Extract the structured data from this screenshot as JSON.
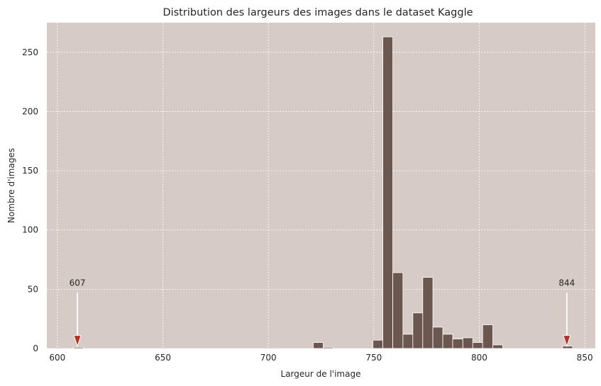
{
  "chart_data": {
    "type": "bar",
    "title": "Distribution des largeurs des images dans le dataset Kaggle",
    "xlabel": "Largeur de l'image",
    "ylabel": "Nombre d'images",
    "xlim": [
      595,
      855
    ],
    "ylim": [
      0,
      275
    ],
    "xticks": [
      600,
      650,
      700,
      750,
      800,
      850
    ],
    "yticks": [
      0,
      50,
      100,
      150,
      200,
      250
    ],
    "grid": true,
    "colors": {
      "plot_background": "#d7cbc8",
      "bar_fill": "#6b5750",
      "bar_edge": "#ffffff",
      "grid": "#ffffff",
      "arrow_head": "#b5301f"
    },
    "bins": [
      {
        "x0": 607.7,
        "x1": 612.4,
        "count": 1
      },
      {
        "x0": 721.3,
        "x1": 726.0,
        "count": 5
      },
      {
        "x0": 726.0,
        "x1": 730.7,
        "count": 1
      },
      {
        "x0": 749.6,
        "x1": 754.3,
        "count": 7
      },
      {
        "x0": 754.3,
        "x1": 759.0,
        "count": 263
      },
      {
        "x0": 759.0,
        "x1": 763.8,
        "count": 64
      },
      {
        "x0": 763.8,
        "x1": 768.5,
        "count": 12
      },
      {
        "x0": 768.5,
        "x1": 773.2,
        "count": 30
      },
      {
        "x0": 773.2,
        "x1": 778.0,
        "count": 60
      },
      {
        "x0": 778.0,
        "x1": 782.7,
        "count": 18
      },
      {
        "x0": 782.7,
        "x1": 787.4,
        "count": 12
      },
      {
        "x0": 787.4,
        "x1": 792.2,
        "count": 8
      },
      {
        "x0": 792.2,
        "x1": 796.9,
        "count": 9
      },
      {
        "x0": 796.9,
        "x1": 801.6,
        "count": 5
      },
      {
        "x0": 801.6,
        "x1": 806.4,
        "count": 20
      },
      {
        "x0": 806.4,
        "x1": 811.1,
        "count": 3
      },
      {
        "x0": 839.5,
        "x1": 844.3,
        "count": 2
      }
    ],
    "annotations": [
      {
        "text": "607",
        "x": 609.5,
        "y_text": 50,
        "y_arrow_tip": 2
      },
      {
        "text": "844",
        "x": 841.5,
        "y_text": 50,
        "y_arrow_tip": 2
      }
    ]
  }
}
